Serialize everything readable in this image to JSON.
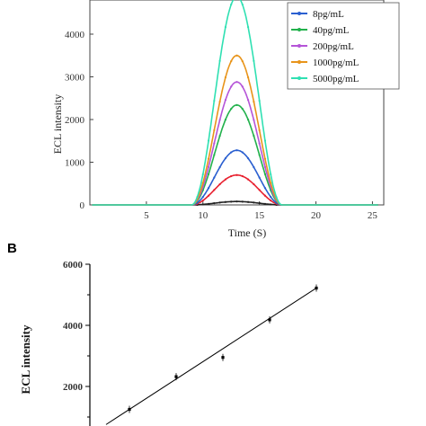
{
  "chart_data": [
    {
      "type": "line",
      "panel": "",
      "xlabel": "Time (S)",
      "ylabel": "ECL intensity",
      "xlim": [
        0,
        26
      ],
      "ylim": [
        0,
        4800
      ],
      "xticks": [
        "5",
        "10",
        "15",
        "20",
        "25"
      ],
      "yticks": [
        "0",
        "1000",
        "2000",
        "3000",
        "4000"
      ],
      "legend_position": "top-right",
      "series": [
        {
          "name": "",
          "color": "#222222",
          "peak": 80
        },
        {
          "name": "",
          "color": "#e8202f",
          "peak": 700
        },
        {
          "name": "8pg/mL",
          "color": "#2a5fd0",
          "peak": 1280
        },
        {
          "name": "40pg/mL",
          "color": "#22b14c",
          "peak": 2340
        },
        {
          "name": "200pg/mL",
          "color": "#b554d8",
          "peak": 2880
        },
        {
          "name": "1000pg/mL",
          "color": "#e8941a",
          "peak": 3500
        },
        {
          "name": "5000pg/mL",
          "color": "#2fe0b2",
          "peak": 4880
        }
      ],
      "peak_time": 13,
      "signal_range": [
        9,
        17
      ]
    },
    {
      "type": "scatter",
      "panel": "B",
      "xlabel": "",
      "ylabel": "ECL intensity",
      "ylim": [
        0,
        6000
      ],
      "yticks": [
        "2000",
        "4000",
        "6000"
      ],
      "points": [
        {
          "x": 1,
          "y": 1250
        },
        {
          "x": 2,
          "y": 2320
        },
        {
          "x": 3,
          "y": 2950
        },
        {
          "x": 4,
          "y": 4180
        },
        {
          "x": 5,
          "y": 5220
        }
      ],
      "fit_line": {
        "x": [
          0.47,
          5.1
        ],
        "y": 0
      }
    }
  ]
}
